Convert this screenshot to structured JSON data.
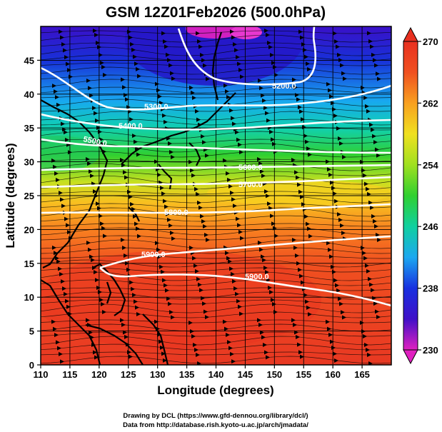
{
  "figure": {
    "title": "GSM 12Z01Feb2026 (500.0hPa)",
    "xlabel": "Longitude (degrees)",
    "ylabel": "Latitude (degrees)",
    "credit_line1": "Drawing by DCL (https://www.gfd-dennou.org/library/dcl/)",
    "credit_line2": "Data from http://database.rish.kyoto-u.ac.jp/arch/jmadata/"
  },
  "chart_data": {
    "type": "heatmap",
    "xlim": [
      110,
      170
    ],
    "ylim": [
      0,
      50
    ],
    "x_ticks": [
      "110",
      "115",
      "120",
      "125",
      "130",
      "135",
      "140",
      "145",
      "150",
      "155",
      "160",
      "165"
    ],
    "y_ticks": [
      "0",
      "5",
      "10",
      "15",
      "20",
      "25",
      "30",
      "35",
      "40",
      "45"
    ],
    "colorbar": {
      "min": 230,
      "max": 270,
      "tick_labels": [
        "270",
        "262",
        "254",
        "246",
        "238",
        "230"
      ],
      "colors_low_to_high": [
        "#e020c0",
        "#4010c8",
        "#1830e0",
        "#1ca8f0",
        "#10d0a0",
        "#30d030",
        "#a0e020",
        "#f0e020",
        "#f8a020",
        "#f05020",
        "#e83020"
      ]
    },
    "contours": [
      {
        "label": "5200.0"
      },
      {
        "label": "5300.0"
      },
      {
        "label": "5400.0"
      },
      {
        "label": "5500.0"
      },
      {
        "label": "5600.0"
      },
      {
        "label": "5700.0"
      },
      {
        "label": "5800.0"
      },
      {
        "label": "5900.0"
      },
      {
        "label": "5900.0"
      }
    ],
    "grid": true
  }
}
